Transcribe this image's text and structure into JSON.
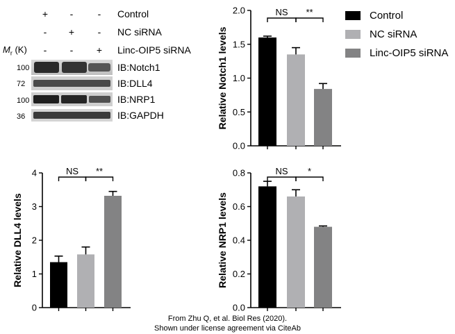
{
  "blot": {
    "conditions": [
      {
        "label": "Control",
        "signs": [
          "+",
          "-",
          "-"
        ]
      },
      {
        "label": "NC siRNA",
        "signs": [
          "-",
          "+",
          "-"
        ]
      },
      {
        "label": "Linc-OIP5 siRNA",
        "signs": [
          "-",
          "-",
          "+"
        ]
      }
    ],
    "mr_label": "M",
    "mr_sub": "r",
    "mr_unit": "(K)",
    "rows": [
      {
        "mw": "100",
        "label": "IB:Notch1"
      },
      {
        "mw": "72",
        "label": "IB:DLL4"
      },
      {
        "mw": "100",
        "label": "IB:NRP1"
      },
      {
        "mw": "36",
        "label": "IB:GAPDH"
      }
    ]
  },
  "legend": [
    {
      "label": "Control",
      "color": "#000000"
    },
    {
      "label": "NC siRNA",
      "color": "#b0b0b3"
    },
    {
      "label": "Linc-OIP5 siRNA",
      "color": "#838384"
    }
  ],
  "chart_data": [
    {
      "type": "bar",
      "categories": [
        "Control",
        "NC siRNA",
        "Linc-OIP5 siRNA"
      ],
      "values": [
        1.6,
        1.35,
        0.84
      ],
      "errors": [
        0.02,
        0.1,
        0.08
      ],
      "ylabel": "Relative  Notch1 levels",
      "ylim": [
        0,
        2.0
      ],
      "yticks": [
        "0.0",
        "0.5",
        "1.0",
        "1.5",
        "2.0"
      ],
      "significance": [
        {
          "pair": [
            0,
            1
          ],
          "label": "NS"
        },
        {
          "pair": [
            1,
            2
          ],
          "label": "**"
        }
      ]
    },
    {
      "type": "bar",
      "categories": [
        "Control",
        "NC siRNA",
        "Linc-OIP5 siRNA"
      ],
      "values": [
        1.35,
        1.58,
        3.32
      ],
      "errors": [
        0.18,
        0.22,
        0.13
      ],
      "ylabel": "Relative  DLL4 levels",
      "ylim": [
        0,
        4
      ],
      "yticks": [
        "0",
        "1",
        "2",
        "3",
        "4"
      ],
      "significance": [
        {
          "pair": [
            0,
            1
          ],
          "label": "NS"
        },
        {
          "pair": [
            1,
            2
          ],
          "label": "**"
        }
      ]
    },
    {
      "type": "bar",
      "categories": [
        "Control",
        "NC siRNA",
        "Linc-OIP5 siRNA"
      ],
      "values": [
        0.72,
        0.66,
        0.48
      ],
      "errors": [
        0.03,
        0.04,
        0.005
      ],
      "ylabel": "Relative NRP1  levels",
      "ylim": [
        0,
        0.8
      ],
      "yticks": [
        "0.0",
        "0.2",
        "0.4",
        "0.6",
        "0.8"
      ],
      "significance": [
        {
          "pair": [
            0,
            1
          ],
          "label": "NS"
        },
        {
          "pair": [
            1,
            2
          ],
          "label": "*"
        }
      ]
    }
  ],
  "footer": {
    "line1": "From Zhu Q, et al. Biol Res (2020).",
    "line2": "Shown under license agreement via CiteAb"
  }
}
